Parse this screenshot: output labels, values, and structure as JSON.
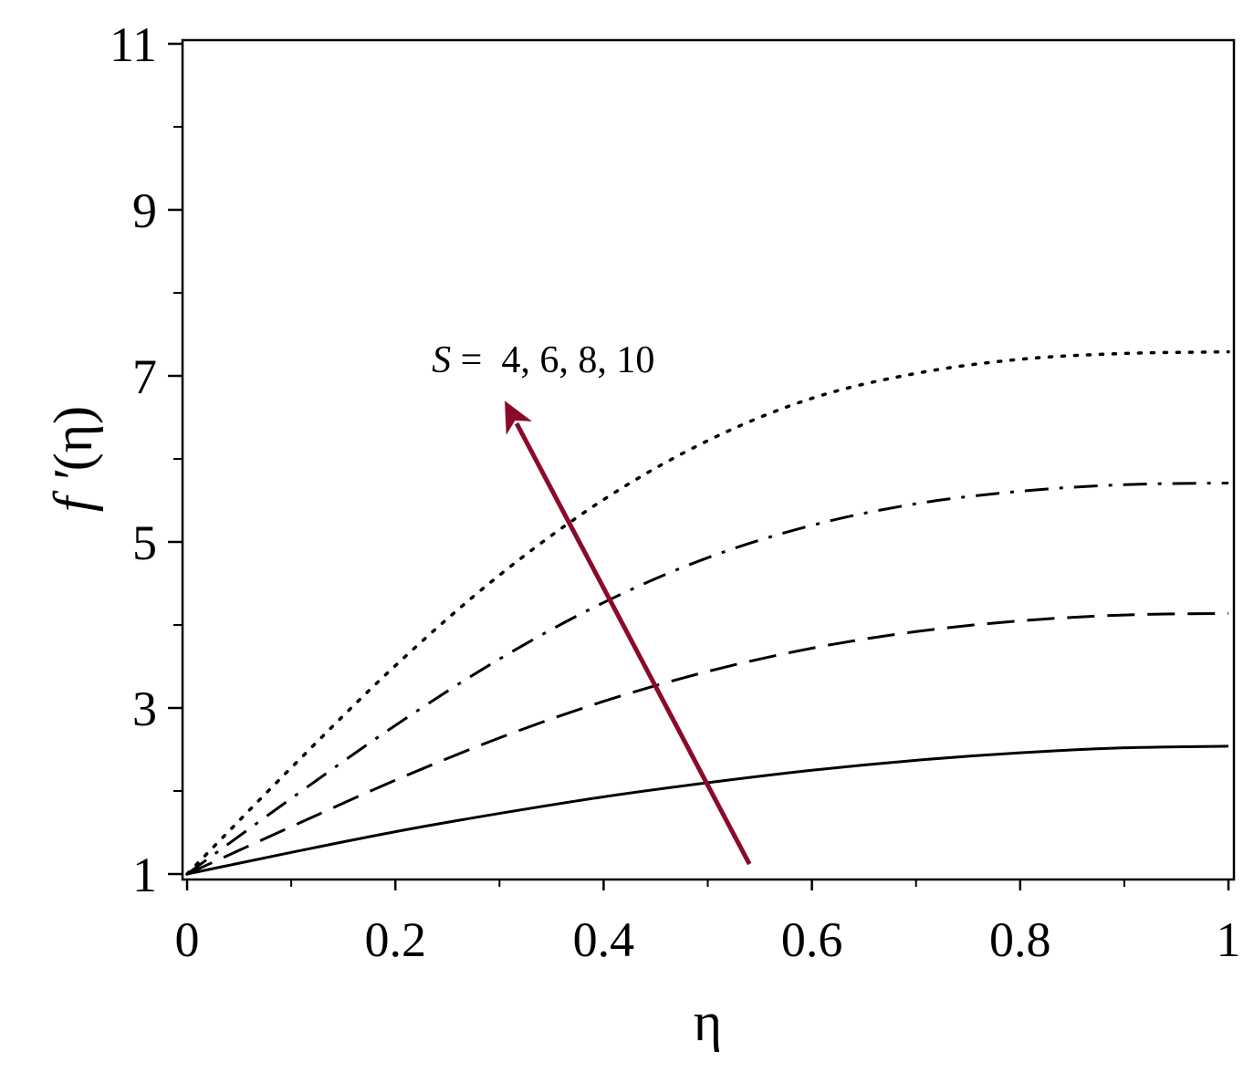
{
  "chart_data": {
    "type": "line",
    "xlabel": "η",
    "ylabel_prefix": "f ′",
    "ylabel_arg": "(η)",
    "xlim": [
      0,
      1
    ],
    "ylim": [
      1,
      11
    ],
    "x_ticks": [
      0,
      0.2,
      0.4,
      0.6,
      0.8,
      1
    ],
    "x_tick_labels": [
      "0",
      "0.2",
      "0.4",
      "0.6",
      "0.8",
      "1"
    ],
    "y_ticks": [
      1,
      3,
      5,
      7,
      9,
      11
    ],
    "y_tick_labels": [
      "1",
      "3",
      "5",
      "7",
      "9",
      "11"
    ],
    "grid": false,
    "series": [
      {
        "style": "solid",
        "x": [
          0,
          0.1,
          0.2,
          0.3,
          0.4,
          0.5,
          0.6,
          0.7,
          0.8,
          0.9,
          1.0
        ],
        "values": [
          1.0,
          1.26,
          1.51,
          1.73,
          1.93,
          2.1,
          2.25,
          2.37,
          2.46,
          2.52,
          2.54
        ]
      },
      {
        "style": "dashed",
        "x": [
          0,
          0.1,
          0.2,
          0.3,
          0.4,
          0.5,
          0.6,
          0.7,
          0.8,
          0.9,
          1.0
        ],
        "values": [
          1.0,
          1.57,
          2.13,
          2.64,
          3.08,
          3.44,
          3.72,
          3.92,
          4.05,
          4.12,
          4.14
        ]
      },
      {
        "style": "dashdot",
        "x": [
          0,
          0.1,
          0.2,
          0.3,
          0.4,
          0.5,
          0.6,
          0.7,
          0.8,
          0.9,
          1.0
        ],
        "values": [
          1.0,
          1.91,
          2.79,
          3.59,
          4.27,
          4.81,
          5.2,
          5.46,
          5.61,
          5.69,
          5.71
        ]
      },
      {
        "style": "dotted",
        "x": [
          0,
          0.1,
          0.2,
          0.3,
          0.4,
          0.5,
          0.6,
          0.7,
          0.8,
          0.9,
          1.0
        ],
        "values": [
          1.0,
          2.28,
          3.51,
          4.6,
          5.51,
          6.22,
          6.73,
          7.03,
          7.2,
          7.27,
          7.29
        ]
      }
    ],
    "annotation": {
      "var": "S",
      "eq": " =  ",
      "values": "4, 6, 8, 10",
      "arrow_color": "#8b0a2a",
      "arrow_from": {
        "x": 0.54,
        "y": 1.12
      },
      "arrow_to": {
        "x": 0.305,
        "y": 6.7
      },
      "label_at": {
        "x": 0.235,
        "y": 7.2
      }
    }
  }
}
